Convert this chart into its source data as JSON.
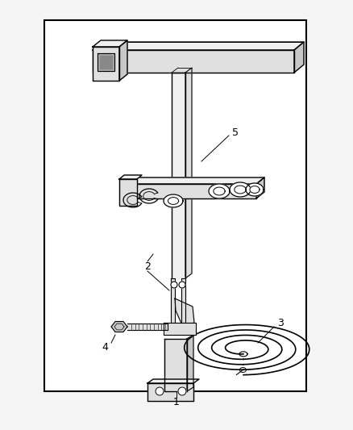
{
  "background_color": "#f5f5f5",
  "border_color": "#000000",
  "line_color": "#000000",
  "fill_light": "#f0f0f0",
  "fill_mid": "#e0e0e0",
  "fill_dark": "#c8c8c8",
  "label_color": "#000000",
  "figsize": [
    4.38,
    5.33
  ],
  "dpi": 100
}
